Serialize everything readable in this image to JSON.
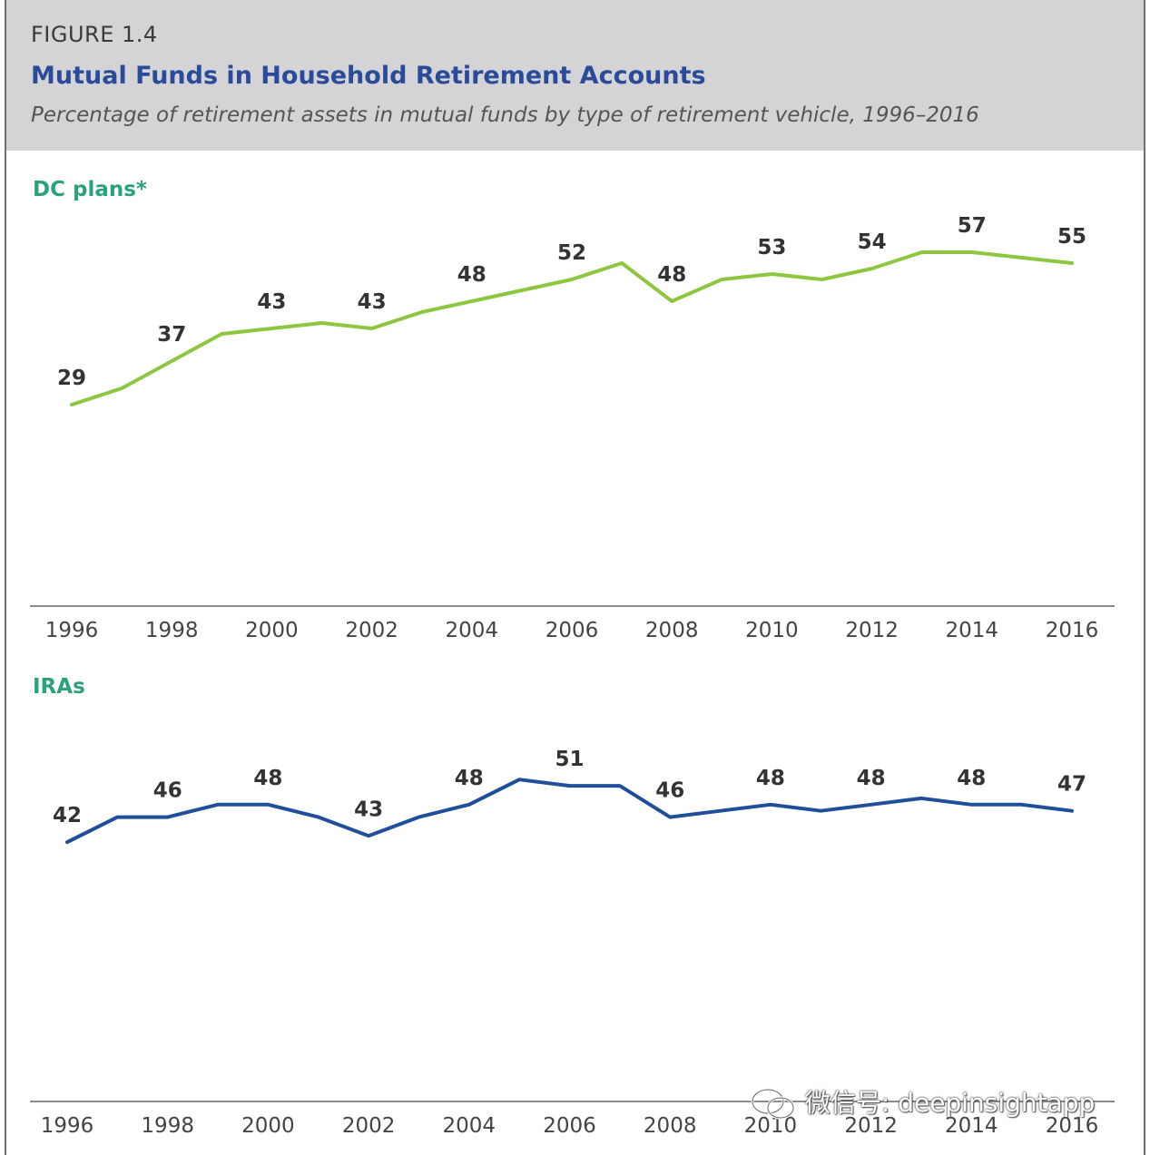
{
  "figure": {
    "label": "FIGURE 1.4",
    "title": "Mutual Funds in Household Retirement Accounts",
    "subtitle": "Percentage of retirement assets in mutual funds by type of retirement vehicle, 1996–2016"
  },
  "watermark": "微信号: deepinsightapp",
  "colors": {
    "dc": "#8dc63f",
    "ira": "#1f4e9a",
    "panel_label": "#2aa27c",
    "header_bg": "#d4d4d6",
    "title": "#2a4a9a"
  },
  "chart_data": [
    {
      "type": "line",
      "panel_label": "DC plans*",
      "x": [
        1996,
        1997,
        1998,
        1999,
        2000,
        2001,
        2002,
        2003,
        2004,
        2005,
        2006,
        2007,
        2008,
        2009,
        2010,
        2011,
        2012,
        2013,
        2014,
        2015,
        2016
      ],
      "tick_labels": [
        "1996",
        "1998",
        "2000",
        "2002",
        "2004",
        "2006",
        "2008",
        "2010",
        "2012",
        "2014",
        "2016"
      ],
      "series": [
        {
          "values": [
            29,
            32,
            37,
            42,
            43,
            44,
            43,
            46,
            48,
            50,
            52,
            55,
            48,
            52,
            53,
            52,
            54,
            57,
            57,
            56,
            55
          ]
        }
      ],
      "data_labels": [
        {
          "x": 1996,
          "text": "29"
        },
        {
          "x": 1998,
          "text": "37"
        },
        {
          "x": 2000,
          "text": "43"
        },
        {
          "x": 2002,
          "text": "43"
        },
        {
          "x": 2004,
          "text": "48"
        },
        {
          "x": 2006,
          "text": "52"
        },
        {
          "x": 2008,
          "text": "48"
        },
        {
          "x": 2010,
          "text": "53"
        },
        {
          "x": 2012,
          "text": "54"
        },
        {
          "x": 2014,
          "text": "57"
        },
        {
          "x": 2016,
          "text": "55"
        }
      ],
      "xlim": [
        1996,
        2016
      ],
      "ylim": [
        0,
        65
      ],
      "grid": false
    },
    {
      "type": "line",
      "panel_label": "IRAs",
      "x": [
        1996,
        1997,
        1998,
        1999,
        2000,
        2001,
        2002,
        2003,
        2004,
        2005,
        2006,
        2007,
        2008,
        2009,
        2010,
        2011,
        2012,
        2013,
        2014,
        2015,
        2016
      ],
      "tick_labels": [
        "1996",
        "1998",
        "2000",
        "2002",
        "2004",
        "2006",
        "2008",
        "2010",
        "2012",
        "2014",
        "2016"
      ],
      "series": [
        {
          "values": [
            42,
            46,
            46,
            48,
            48,
            46,
            43,
            46,
            48,
            52,
            51,
            51,
            46,
            47,
            48,
            47,
            48,
            49,
            48,
            48,
            47
          ]
        }
      ],
      "data_labels": [
        {
          "x": 1996,
          "text": "42"
        },
        {
          "x": 1998,
          "text": "46"
        },
        {
          "x": 2000,
          "text": "48"
        },
        {
          "x": 2002,
          "text": "43"
        },
        {
          "x": 2004,
          "text": "48"
        },
        {
          "x": 2006,
          "text": "51"
        },
        {
          "x": 2008,
          "text": "46"
        },
        {
          "x": 2010,
          "text": "48"
        },
        {
          "x": 2012,
          "text": "48"
        },
        {
          "x": 2014,
          "text": "48"
        },
        {
          "x": 2016,
          "text": "47"
        }
      ],
      "xlim": [
        1996,
        2016
      ],
      "ylim": [
        0,
        65
      ],
      "grid": false
    }
  ]
}
